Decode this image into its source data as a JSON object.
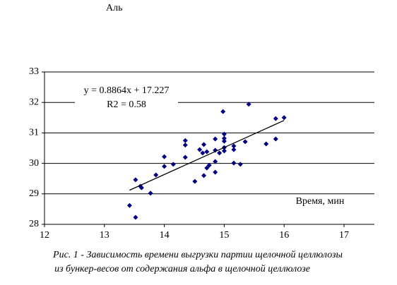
{
  "chart_data": {
    "type": "scatter",
    "y_axis_label": "Аль",
    "x_axis_label": "Время, мин",
    "equation": "y = 0.8864x + 17.227",
    "r_squared": "R2 = 0.58",
    "caption": [
      "Рис. 1 - Зависимость времени выгрузки партии щелочной целлюлозы",
      "из бункер-весов от содержания альфа в щелочной целлюлозе"
    ],
    "color": "#000080",
    "x": [
      13.42,
      13.52,
      13.52,
      13.6,
      13.62,
      13.77,
      13.86,
      14.0,
      14.0,
      14.15,
      14.35,
      14.35,
      14.35,
      14.51,
      14.59,
      14.64,
      14.66,
      14.66,
      14.71,
      14.71,
      14.75,
      14.85,
      14.85,
      14.85,
      14.85,
      14.92,
      14.98,
      15.0,
      15.0,
      15.0,
      15.0,
      15.0,
      15.16,
      15.16,
      15.16,
      15.27,
      15.35,
      15.41,
      15.7,
      15.86,
      15.86,
      16.0
    ],
    "values": [
      28.62,
      28.23,
      29.46,
      29.25,
      29.2,
      29.02,
      29.62,
      30.22,
      29.9,
      29.97,
      30.75,
      30.6,
      30.2,
      29.41,
      30.45,
      30.34,
      30.62,
      29.6,
      30.38,
      29.85,
      29.94,
      30.8,
      30.43,
      30.06,
      29.71,
      30.34,
      31.7,
      30.96,
      30.82,
      30.73,
      30.52,
      30.41,
      30.57,
      30.45,
      30.01,
      29.97,
      30.71,
      31.94,
      30.64,
      31.47,
      30.8,
      31.5
    ],
    "trendline": {
      "x": [
        13.42,
        16.0
      ],
      "y": [
        29.12,
        31.41
      ],
      "color": "#000000"
    },
    "xlim": [
      12,
      17
    ],
    "xticks": [
      12,
      13,
      14,
      15,
      16,
      17
    ],
    "ylim": [
      28,
      33
    ],
    "yticks": [
      28,
      29,
      30,
      31,
      32,
      33
    ],
    "grid": true
  }
}
